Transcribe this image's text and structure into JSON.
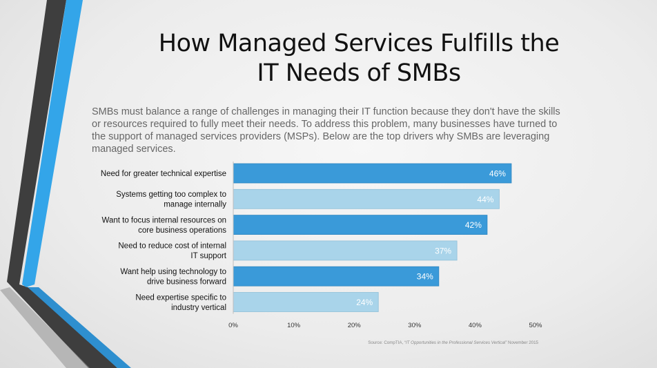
{
  "slide": {
    "title_line1": "How Managed Services Fulfills the",
    "title_line2": "IT Needs of SMBs",
    "intro": "SMBs must balance a range of challenges in managing their IT function because they don't have the skills or resources required to fully meet their needs. To address this problem, many businesses have turned to the support of managed services providers (MSPs). Below are the top drivers why SMBs are leveraging managed services.",
    "source_prefix": "Source: CompTIA, ",
    "source_title": "“IT Opportunities in the Professional Services Vertical”",
    "source_suffix": " November 2015"
  },
  "colors": {
    "bar_dark": "#3a9ad9",
    "bar_light": "#a9d4ea",
    "stripe_blue": "#34a6e8",
    "stripe_dark": "#3c3c3c"
  },
  "chart_data": {
    "type": "bar",
    "orientation": "horizontal",
    "categories": [
      [
        "Need for greater technical expertise"
      ],
      [
        "Systems getting too complex to",
        "manage internally"
      ],
      [
        "Want to focus internal resources on",
        "core business operations"
      ],
      [
        "Need to reduce cost of internal",
        "IT support"
      ],
      [
        "Want help using technology to",
        "drive business forward"
      ],
      [
        "Need expertise specific to",
        "industry vertical"
      ]
    ],
    "values": [
      46,
      44,
      42,
      37,
      34,
      24
    ],
    "value_labels": [
      "46%",
      "44%",
      "42%",
      "37%",
      "34%",
      "24%"
    ],
    "bar_styles": [
      "dark",
      "light",
      "dark",
      "light",
      "dark",
      "light"
    ],
    "xlim": [
      0,
      50
    ],
    "xticks": [
      0,
      10,
      20,
      30,
      40,
      50
    ],
    "xtick_labels": [
      "0%",
      "10%",
      "20%",
      "30%",
      "40%",
      "50%"
    ],
    "grid": false,
    "legend": "none"
  }
}
